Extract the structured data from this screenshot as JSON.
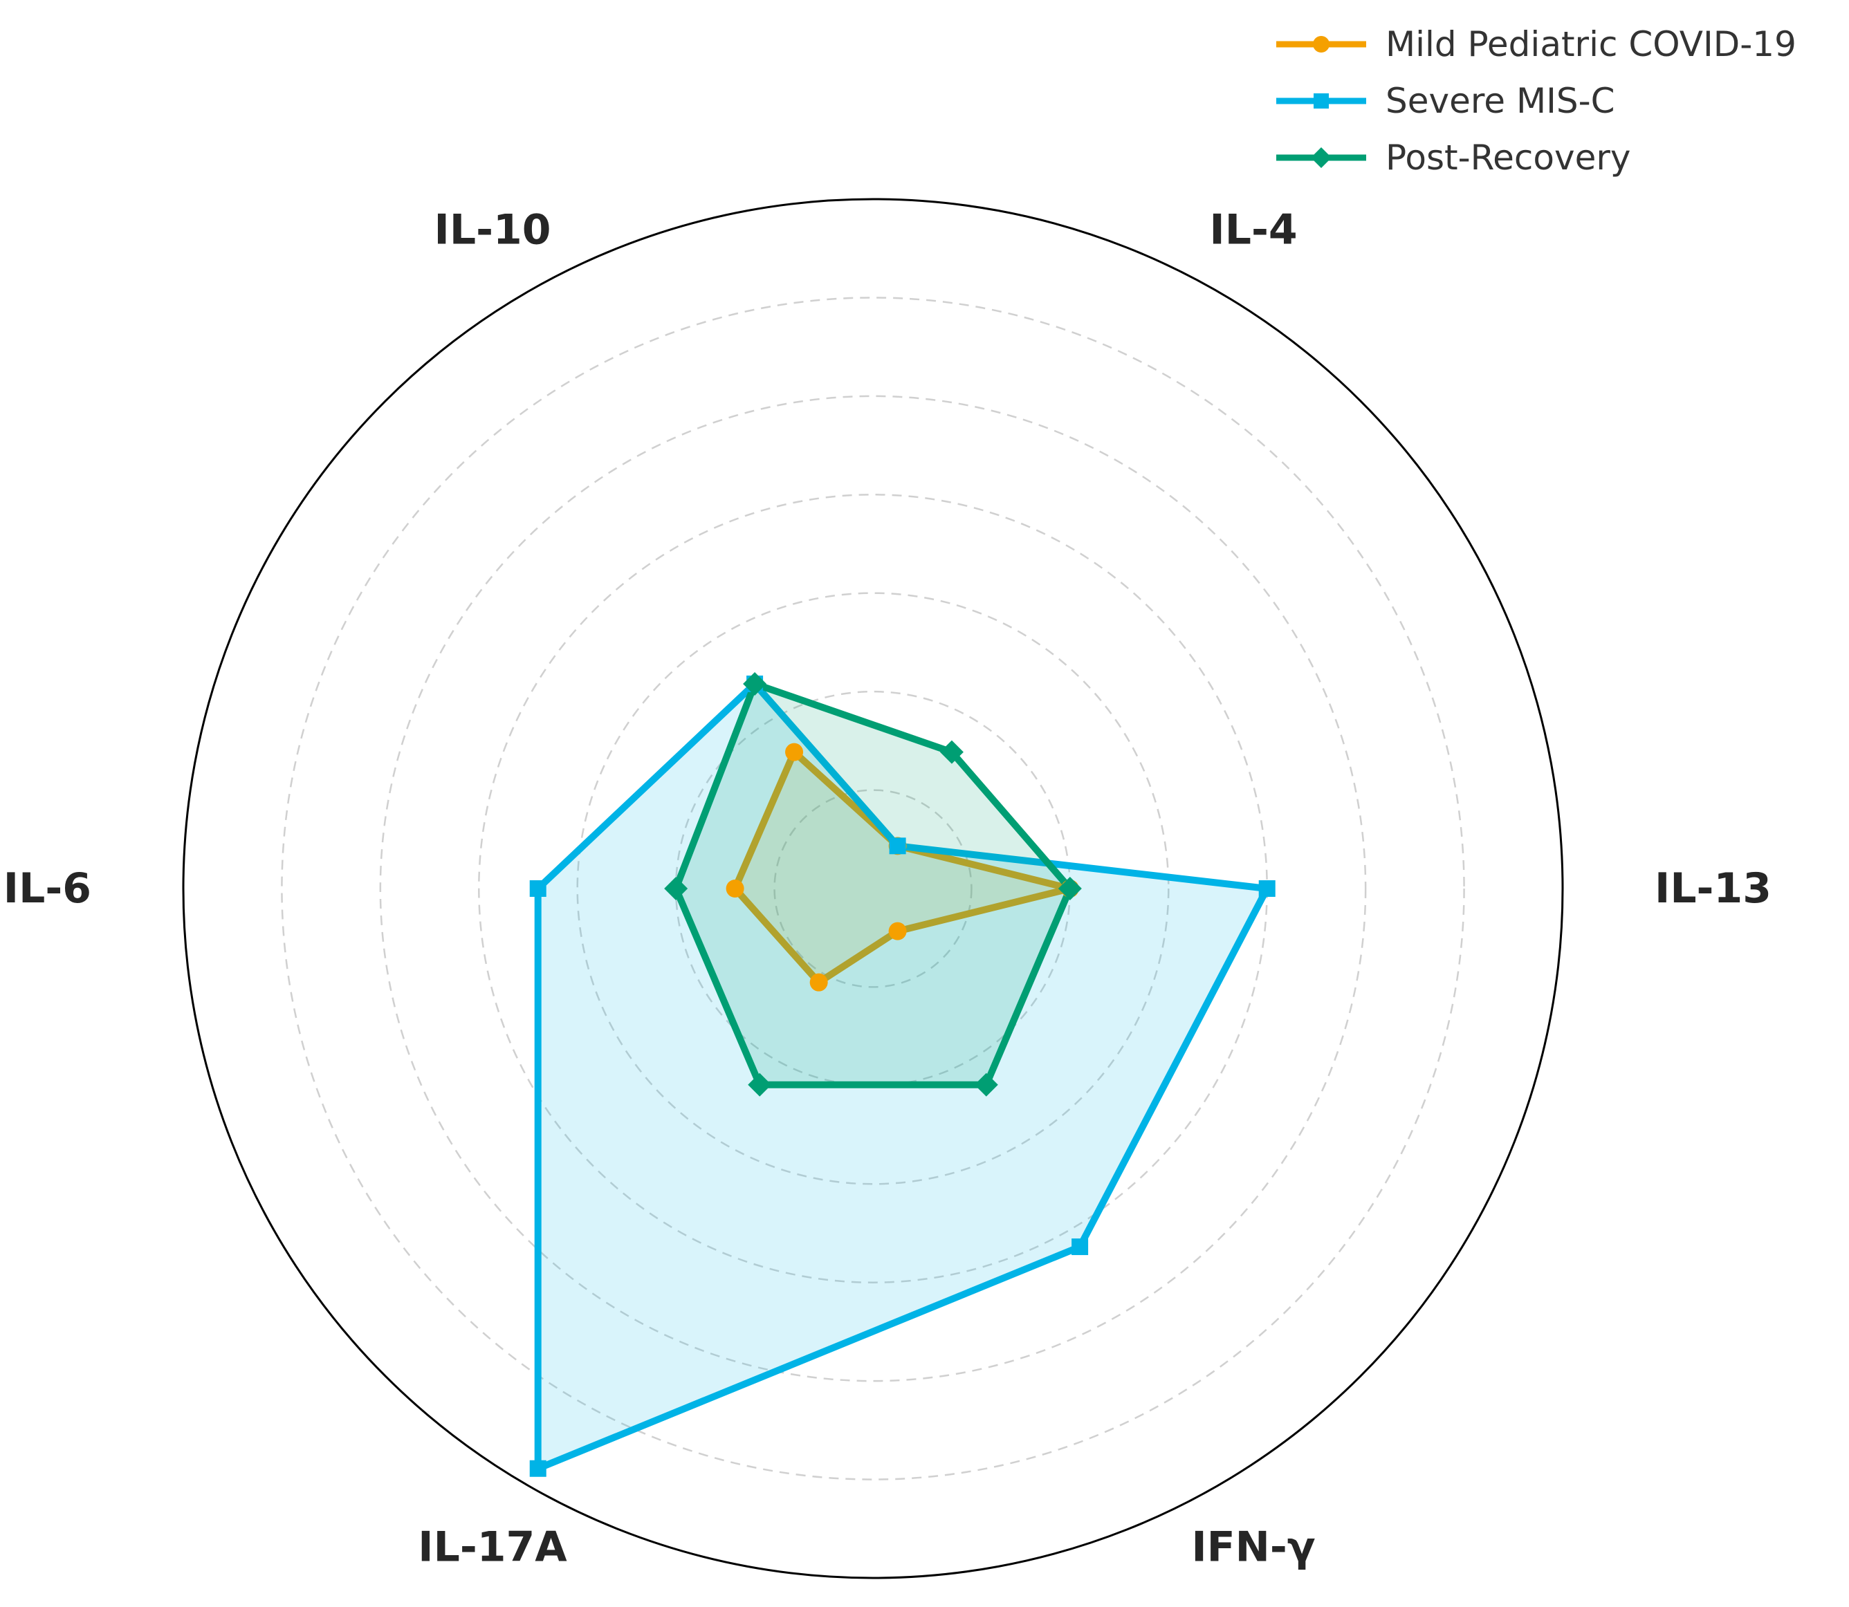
{
  "chart_data": {
    "type": "radar",
    "axes": [
      "IL-4",
      "IL-13",
      "IFN-γ",
      "IL-17A",
      "IL-6",
      "IL-10"
    ],
    "r_max": 7,
    "rings": [
      1,
      2,
      3,
      4,
      5,
      6
    ],
    "grid": true,
    "legend_position": "top-right",
    "series": [
      {
        "name": "Mild Pediatric COVID-19",
        "values": [
          0.5,
          2.0,
          0.5,
          1.1,
          1.4,
          1.6
        ],
        "color": "#F5A000",
        "marker": "circle"
      },
      {
        "name": "Severe MIS-C",
        "values": [
          0.5,
          4.0,
          4.2,
          6.8,
          3.4,
          2.4
        ],
        "color": "#00B3E6",
        "marker": "square"
      },
      {
        "name": "Post-Recovery",
        "values": [
          1.6,
          2.0,
          2.3,
          2.3,
          2.0,
          2.4
        ],
        "color": "#009E73",
        "marker": "diamond"
      }
    ]
  }
}
